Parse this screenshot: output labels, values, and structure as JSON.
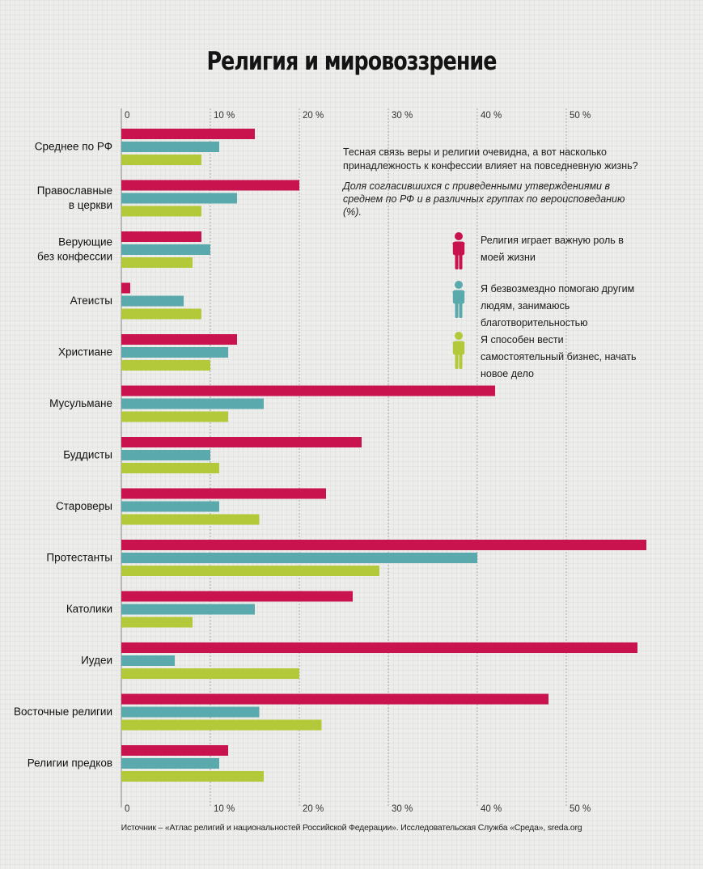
{
  "title": "Религия и мировоззрение",
  "intro": "Тесная связь веры и религии очевидна, а вот насколько принадлежность к конфессии влияет на повседневную жизнь?",
  "intro_note": "Доля согласившихся с приведенными утверждениями в среднем по РФ и в различных группах по вероисповеданию (%).",
  "source": "Источник – «Атлас религий и национальностей Российской Федерации». Исследовательская Служба «Среда», sreda.org",
  "colors": {
    "religion": "#c8134e",
    "charity": "#5aa9ad",
    "business": "#b4c93a"
  },
  "legend": [
    {
      "label": "Религия играет важную роль в моей жизни",
      "color": "#c8134e",
      "icon": "person-icon"
    },
    {
      "label": "Я безвозмездно помогаю другим людям, занимаюсь благотворительностью",
      "color": "#5aa9ad",
      "icon": "person-icon"
    },
    {
      "label": "Я способен вести самостоятельный бизнес, начать новое дело",
      "color": "#b4c93a",
      "icon": "person-icon"
    }
  ],
  "chart_data": {
    "type": "bar",
    "orientation": "horizontal",
    "xlim": [
      0,
      60
    ],
    "xticks": [
      "0",
      "10 %",
      "20 %",
      "30 %",
      "40 %",
      "50 %"
    ],
    "grid": true,
    "categories": [
      "Среднее по РФ",
      "Православные в церкви",
      "Верующие без конфессии",
      "Атеисты",
      "Христиане",
      "Мусульмане",
      "Буддисты",
      "Староверы",
      "Протестанты",
      "Католики",
      "Иудеи",
      "Восточные религии",
      "Религии предков"
    ],
    "series": [
      {
        "name": "Религия играет важную роль в моей жизни",
        "color": "#c8134e",
        "values": [
          15,
          20,
          9,
          1,
          13,
          42,
          27,
          23,
          59,
          26,
          58,
          48,
          12
        ]
      },
      {
        "name": "Я безвозмездно помогаю другим людям, занимаюсь благотворительностью",
        "color": "#5aa9ad",
        "values": [
          11,
          13,
          10,
          7,
          12,
          16,
          10,
          11,
          40,
          15,
          6,
          15.5,
          11
        ]
      },
      {
        "name": "Я способен вести самостоятельный бизнес, начать новое дело",
        "color": "#b4c93a",
        "values": [
          9,
          9,
          8,
          9,
          10,
          12,
          11,
          15.5,
          29,
          8,
          20,
          22.5,
          16
        ]
      }
    ]
  }
}
